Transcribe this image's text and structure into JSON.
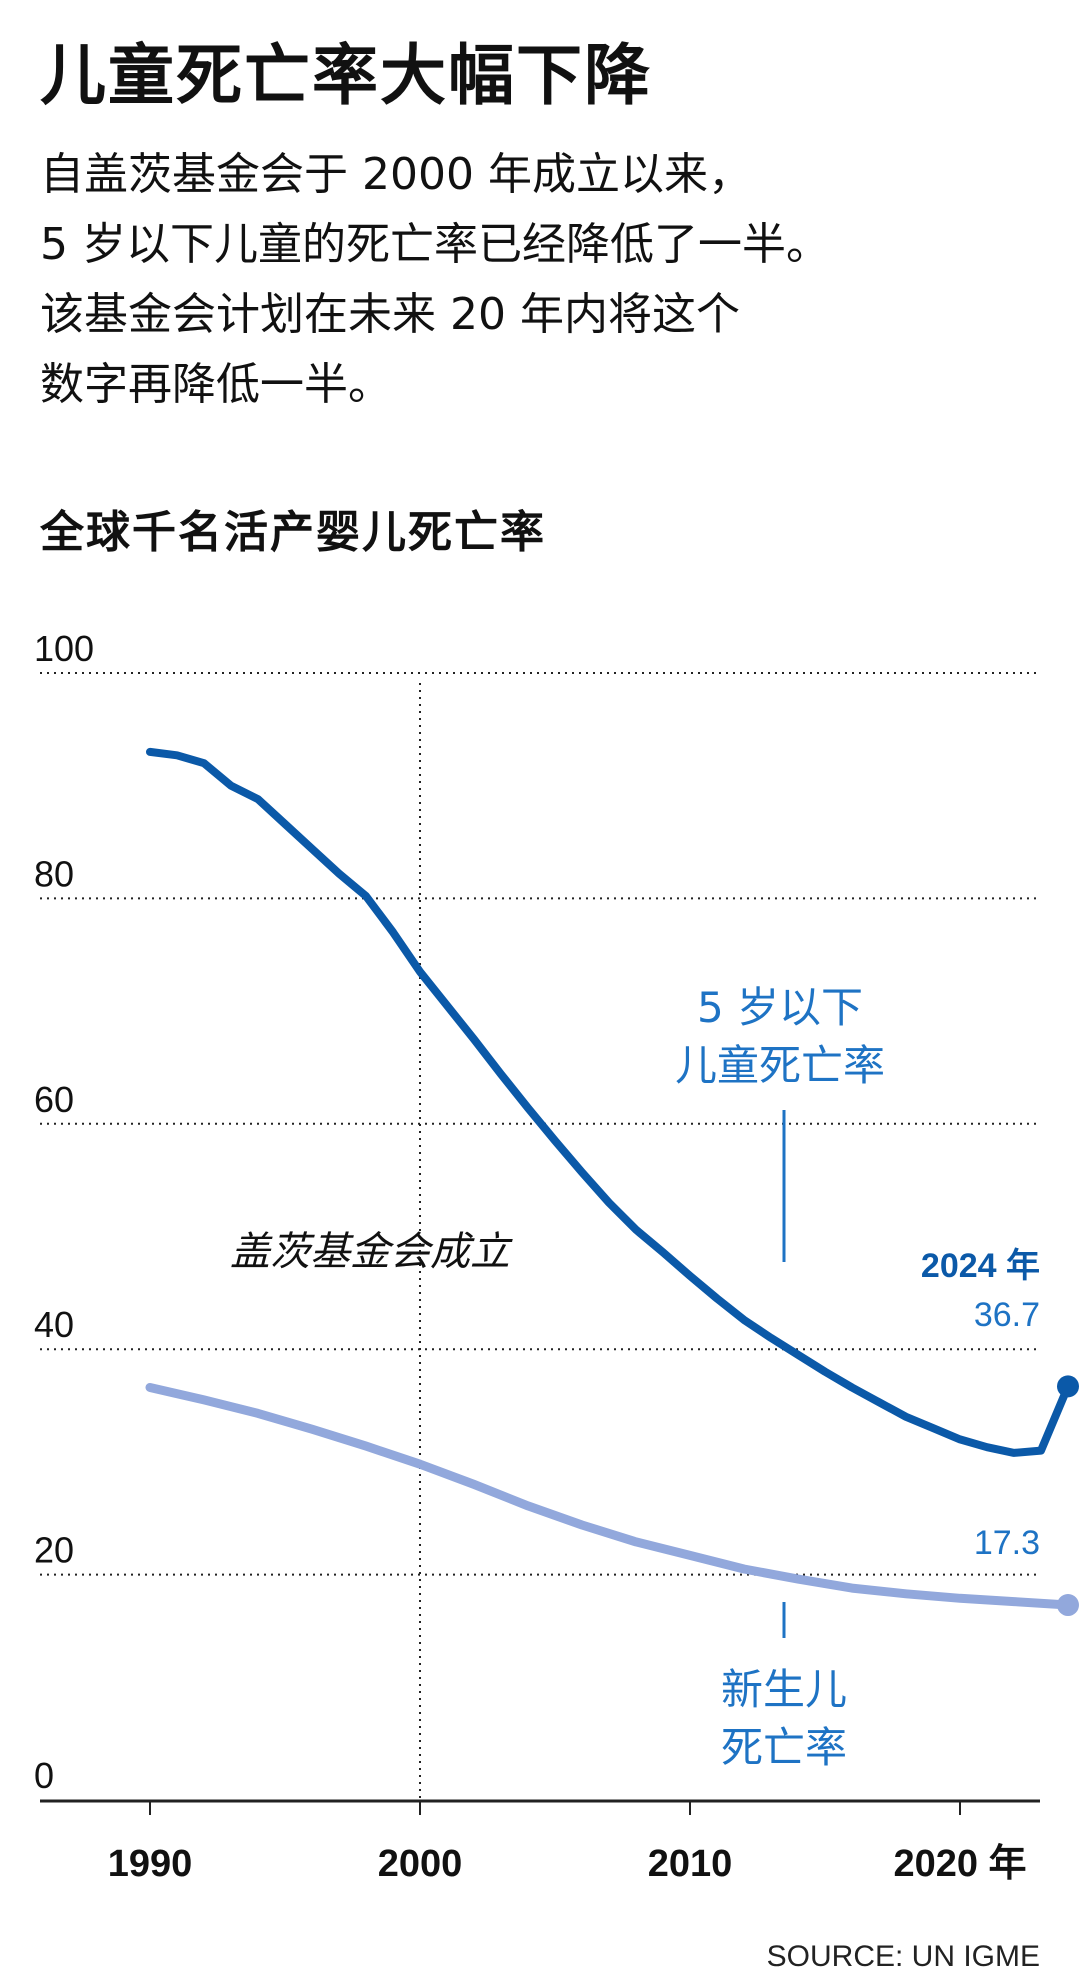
{
  "header": {
    "title": "儿童死亡率大幅下降",
    "subtitle_lines": [
      "自盖茨基金会于 2000 年成立以来，",
      "5 岁以下儿童的死亡率已经降低了一半。",
      "该基金会计划在未来 20 年内将这个",
      "数字再降低一半。"
    ]
  },
  "chart_data": {
    "type": "line",
    "title": "全球千名活产婴儿死亡率",
    "xlabel": "",
    "ylabel": "",
    "xlim": [
      1986,
      2024.5
    ],
    "ylim": [
      0,
      100
    ],
    "y_ticks": [
      "0",
      "20",
      "40",
      "60",
      "80",
      "100"
    ],
    "x_ticks": [
      {
        "value": 1990,
        "label": "1990"
      },
      {
        "value": 2000,
        "label": "2000"
      },
      {
        "value": 2010,
        "label": "2010"
      },
      {
        "value": 2020,
        "label": "2020 年"
      }
    ],
    "grid": "horizontal dotted",
    "series": [
      {
        "name": "5 岁以下儿童死亡率",
        "color": "#0b59a8",
        "x": [
          1990,
          1991,
          1992,
          1993,
          1994,
          1995,
          1996,
          1997,
          1998,
          1999,
          2000,
          2001,
          2002,
          2003,
          2004,
          2005,
          2006,
          2007,
          2008,
          2009,
          2010,
          2011,
          2012,
          2013,
          2014,
          2015,
          2016,
          2017,
          2018,
          2019,
          2020,
          2021,
          2022,
          2023,
          2024
        ],
        "values": [
          93.0,
          92.7,
          92.0,
          90.0,
          88.8,
          86.6,
          84.4,
          82.2,
          80.2,
          77.0,
          73.5,
          70.5,
          67.5,
          64.4,
          61.4,
          58.5,
          55.7,
          53.0,
          50.6,
          48.6,
          46.5,
          44.5,
          42.6,
          41.0,
          39.5,
          38.0,
          36.6,
          35.3,
          34.0,
          33.0,
          32.0,
          31.3,
          30.8,
          31.0,
          36.7
        ],
        "end_label": "36.7",
        "end_year_label": "2024 年"
      },
      {
        "name": "新生儿死亡率",
        "color": "#92a8dc",
        "x": [
          1990,
          1992,
          1994,
          1996,
          1998,
          2000,
          2002,
          2004,
          2006,
          2008,
          2010,
          2012,
          2014,
          2016,
          2018,
          2020,
          2022,
          2024
        ],
        "values": [
          36.6,
          35.5,
          34.3,
          32.9,
          31.4,
          29.8,
          28.0,
          26.1,
          24.4,
          22.9,
          21.7,
          20.5,
          19.6,
          18.8,
          18.3,
          17.9,
          17.6,
          17.3
        ],
        "end_label": "17.3"
      }
    ],
    "annotations": [
      {
        "text": "盖茨基金会成立",
        "x": 2000
      },
      {
        "text_lines": [
          "5 岁以下",
          "儿童死亡率"
        ],
        "series": 0
      },
      {
        "text_lines": [
          "新生儿",
          "死亡率"
        ],
        "series": 1
      }
    ]
  },
  "footer": {
    "source": "SOURCE: UN IGME"
  }
}
